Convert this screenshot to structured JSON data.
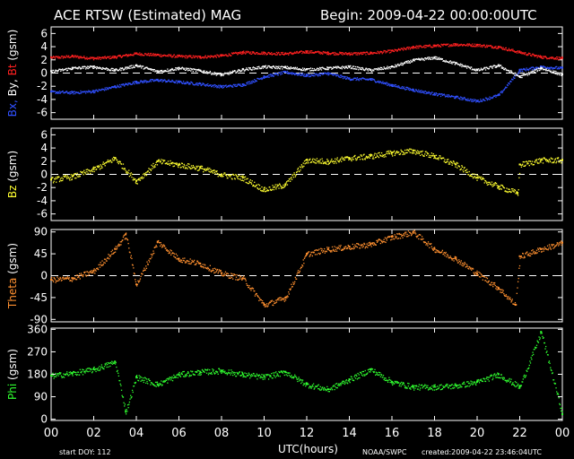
{
  "header": {
    "title": "ACE RTSW (Estimated) MAG",
    "begin": "Begin: 2009-04-22 00:00:00UTC"
  },
  "footer": {
    "start_doy": "start DOY:  112",
    "xlabel": "UTC(hours)",
    "source": "NOAA/SWPC",
    "created": "created:2009-04-22 23:46:04UTC"
  },
  "chart_data": [
    {
      "type": "scatter",
      "panel": "b",
      "ylabel_parts": [
        {
          "text": "Bx,",
          "color": "#3050ff"
        },
        {
          "text": "By,",
          "color": "#ffffff"
        },
        {
          "text": "Bt",
          "color": "#ff2020"
        },
        {
          "text": "(gsm)",
          "color": "#ffffff"
        }
      ],
      "ylim": [
        -7,
        7
      ],
      "yticks": [
        "6",
        "4",
        "2",
        "0",
        "-2",
        "-4",
        "-6"
      ],
      "ytick_values": [
        6,
        4,
        2,
        0,
        -2,
        -4,
        -6
      ],
      "zero_line": true,
      "series": [
        {
          "color": "#ff2020",
          "x": [
            0,
            1,
            2,
            3,
            4,
            5,
            6,
            7,
            8,
            9,
            10,
            11,
            12,
            13,
            14,
            15,
            16,
            17,
            18,
            19,
            20,
            21,
            22,
            23,
            24
          ],
          "values": [
            2.4,
            2.6,
            2.3,
            2.5,
            3.0,
            2.8,
            2.6,
            2.5,
            2.7,
            3.2,
            3.1,
            3.0,
            3.3,
            3.1,
            3.0,
            3.1,
            3.4,
            4.0,
            4.2,
            4.4,
            4.3,
            4.0,
            3.2,
            2.5,
            2.3
          ]
        },
        {
          "color": "#3050ff",
          "x": [
            0,
            1,
            2,
            3,
            4,
            5,
            6,
            7,
            8,
            9,
            10,
            11,
            12,
            13,
            14,
            15,
            16,
            17,
            18,
            19,
            20,
            21,
            22,
            23,
            24
          ],
          "values": [
            -2.8,
            -2.9,
            -2.7,
            -2.0,
            -1.3,
            -1.0,
            -1.3,
            -1.6,
            -2.0,
            -1.7,
            -0.5,
            0.2,
            -0.3,
            0.0,
            -0.8,
            -0.9,
            -1.8,
            -2.5,
            -3.1,
            -3.6,
            -4.2,
            -3.3,
            0.5,
            1.0,
            0.8
          ]
        },
        {
          "color": "#ffffff",
          "x": [
            0,
            1,
            2,
            3,
            4,
            5,
            6,
            7,
            8,
            9,
            10,
            11,
            12,
            13,
            14,
            15,
            16,
            17,
            18,
            19,
            20,
            21,
            22,
            23,
            24
          ],
          "values": [
            0.3,
            0.8,
            1.0,
            0.5,
            1.2,
            0.3,
            0.8,
            0.4,
            -0.2,
            0.6,
            1.0,
            0.9,
            0.6,
            0.8,
            1.0,
            0.5,
            1.0,
            2.0,
            2.4,
            1.5,
            0.5,
            1.2,
            -0.5,
            0.8,
            -0.2
          ]
        }
      ]
    },
    {
      "type": "scatter",
      "panel": "bz",
      "ylabel_parts": [
        {
          "text": "Bz",
          "color": "#ffff30"
        },
        {
          "text": "(gsm)",
          "color": "#ffffff"
        }
      ],
      "ylim": [
        -7,
        7
      ],
      "yticks": [
        "6",
        "4",
        "2",
        "0",
        "-2",
        "-4",
        "-6"
      ],
      "ytick_values": [
        6,
        4,
        2,
        0,
        -2,
        -4,
        -6
      ],
      "zero_line": true,
      "series": [
        {
          "color": "#ffff30",
          "x": [
            0,
            1,
            2,
            3,
            4,
            5,
            6,
            7,
            8,
            9,
            10,
            11,
            12,
            13,
            14,
            15,
            16,
            17,
            18,
            19,
            20,
            21,
            21.9,
            22,
            23,
            24
          ],
          "values": [
            -0.8,
            -0.3,
            0.8,
            2.5,
            -1.0,
            2.0,
            1.5,
            1.0,
            0.0,
            -0.5,
            -2.3,
            -1.5,
            2.2,
            2.0,
            2.5,
            2.8,
            3.3,
            3.6,
            2.8,
            1.5,
            -0.5,
            -1.8,
            -2.8,
            1.5,
            2.2,
            2.2
          ]
        }
      ]
    },
    {
      "type": "scatter",
      "panel": "theta",
      "ylabel_parts": [
        {
          "text": "Theta",
          "color": "#ff9030"
        },
        {
          "text": "(gsm)",
          "color": "#ffffff"
        }
      ],
      "ylim": [
        -95,
        95
      ],
      "yticks": [
        "90",
        "45",
        "0",
        "-45",
        "-90"
      ],
      "ytick_values": [
        90,
        45,
        0,
        -45,
        -90
      ],
      "zero_line": true,
      "series": [
        {
          "color": "#ff9030",
          "x": [
            0,
            1,
            2,
            3,
            3.5,
            4,
            5,
            6,
            7,
            8,
            9,
            10,
            11,
            12,
            13,
            14,
            15,
            16,
            17,
            18,
            19,
            20,
            21,
            21.8,
            22,
            23,
            24
          ],
          "values": [
            -8,
            -5,
            10,
            55,
            85,
            -18,
            70,
            35,
            25,
            5,
            -5,
            -60,
            -45,
            45,
            55,
            60,
            65,
            80,
            90,
            55,
            35,
            5,
            -25,
            -60,
            40,
            55,
            68
          ]
        }
      ]
    },
    {
      "type": "scatter",
      "panel": "phi",
      "ylabel_parts": [
        {
          "text": "Phi",
          "color": "#30ff30"
        },
        {
          "text": "(gsm)",
          "color": "#ffffff"
        }
      ],
      "ylim": [
        -5,
        365
      ],
      "yticks": [
        "360",
        "270",
        "180",
        "90",
        "0"
      ],
      "ytick_values": [
        360,
        270,
        180,
        90,
        0
      ],
      "zero_line": false,
      "series": [
        {
          "color": "#30ff30",
          "x": [
            0,
            1,
            2,
            3,
            3.5,
            4,
            5,
            6,
            7,
            8,
            9,
            10,
            11,
            12,
            13,
            14,
            15,
            16,
            17,
            18,
            19,
            20,
            21,
            22,
            23,
            24
          ],
          "values": [
            175,
            185,
            200,
            230,
            30,
            170,
            140,
            180,
            190,
            195,
            180,
            170,
            190,
            140,
            120,
            160,
            200,
            150,
            130,
            130,
            135,
            150,
            180,
            130,
            350,
            20
          ]
        }
      ]
    }
  ],
  "xaxis": {
    "ticks": [
      "00",
      "02",
      "04",
      "06",
      "08",
      "10",
      "12",
      "14",
      "16",
      "18",
      "20",
      "22",
      "00"
    ],
    "tick_values": [
      0,
      2,
      4,
      6,
      8,
      10,
      12,
      14,
      16,
      18,
      20,
      22,
      24
    ],
    "xlim": [
      0,
      24
    ]
  },
  "colors": {
    "background": "#000000",
    "frame": "#ffffff",
    "bt": "#ff2020",
    "bx": "#3050ff",
    "by": "#ffffff",
    "bz": "#ffff30",
    "theta": "#ff9030",
    "phi": "#30ff30"
  }
}
